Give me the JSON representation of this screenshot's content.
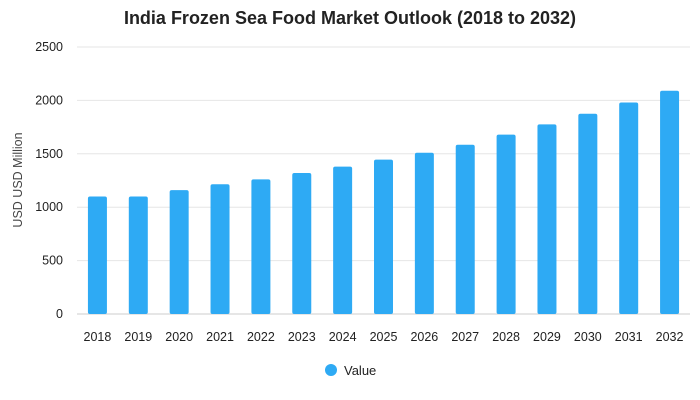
{
  "chart_data": {
    "type": "bar",
    "title": "India Frozen Sea Food Market Outlook (2018 to 2032)",
    "xlabel": "",
    "ylabel": "USD USD Million",
    "categories": [
      "2018",
      "2019",
      "2020",
      "2021",
      "2022",
      "2023",
      "2024",
      "2025",
      "2026",
      "2027",
      "2028",
      "2029",
      "2030",
      "2031",
      "2032"
    ],
    "series": [
      {
        "name": "Value",
        "values": [
          1100,
          1100,
          1160,
          1215,
          1260,
          1320,
          1380,
          1445,
          1510,
          1585,
          1680,
          1775,
          1875,
          1980,
          2090
        ]
      }
    ],
    "ylim": [
      0,
      2500
    ],
    "yticks": [
      0,
      500,
      1000,
      1500,
      2000,
      2500
    ],
    "grid": true,
    "legend_position": "bottom-center",
    "bar_color": "#2eaaf4"
  }
}
